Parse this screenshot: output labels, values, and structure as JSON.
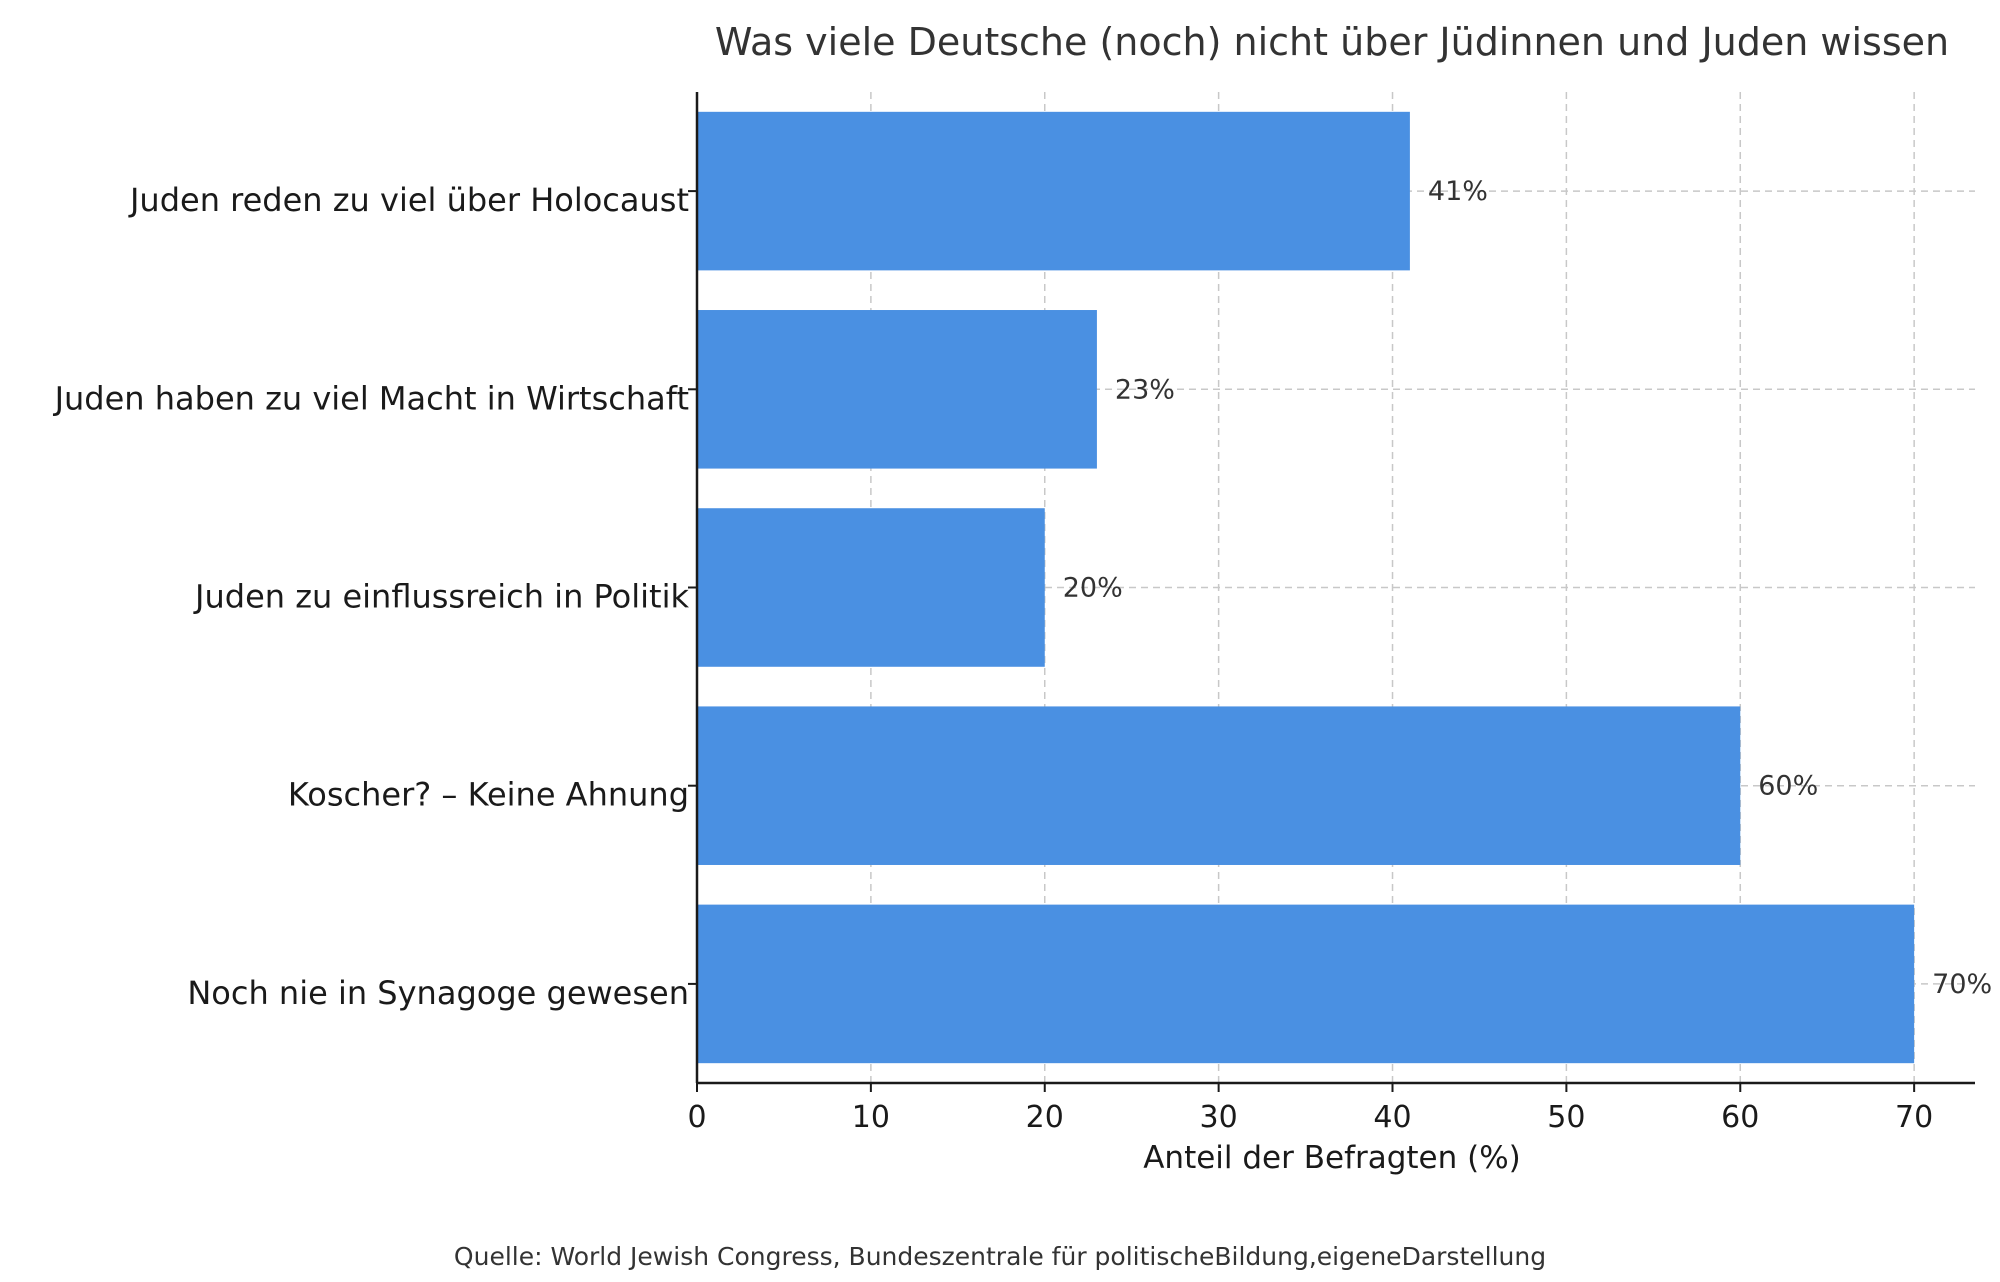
{
  "chart_data": {
    "type": "bar",
    "orientation": "horizontal",
    "title": "Was viele Deutsche (noch) nicht über Jüdinnen und Juden wissen",
    "xlabel": "Anteil der Befragten (%)",
    "ylabel": "",
    "categories": [
      "Juden reden zu viel über Holocaust",
      "Juden haben zu viel Macht in Wirtschaft",
      "Juden zu einflussreich in Politik",
      "Koscher? – Keine Ahnung",
      "Noch nie in Synagoge gewesen"
    ],
    "values": [
      41,
      23,
      20,
      60,
      70
    ],
    "data_labels": [
      "41%",
      "23%",
      "20%",
      "60%",
      "70%"
    ],
    "xlim": [
      0,
      73.5
    ],
    "xticks": [
      0,
      10,
      20,
      30,
      40,
      50,
      60,
      70
    ],
    "grid": true,
    "bar_color": "#4a90e2",
    "source": "Quelle: World Jewish Congress, Bundeszentrale für politischeBildung,eigeneDarstellung"
  }
}
